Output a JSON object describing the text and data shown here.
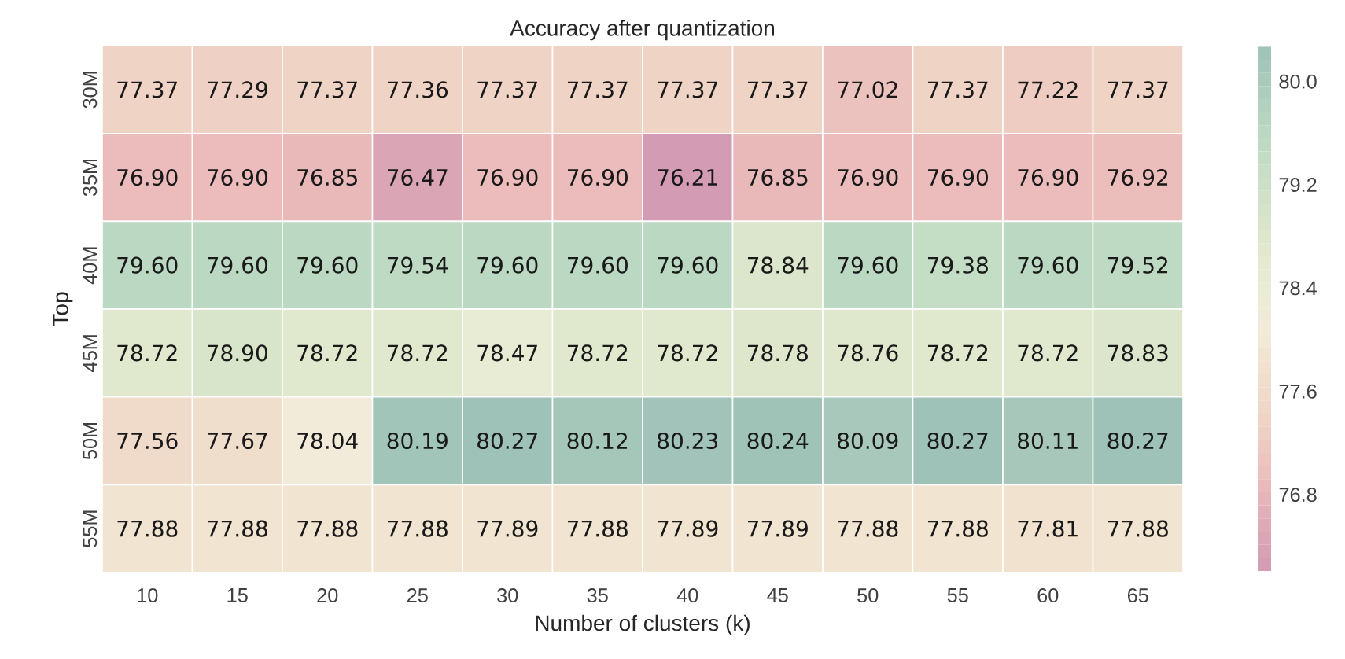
{
  "chart_data": {
    "type": "heatmap",
    "title": "Accuracy after quantization",
    "xlabel": "Number of clusters (k)",
    "ylabel": "Top",
    "categories": [
      "10",
      "15",
      "20",
      "25",
      "30",
      "35",
      "40",
      "45",
      "50",
      "55",
      "60",
      "65"
    ],
    "y_categories": [
      "30M",
      "35M",
      "40M",
      "45M",
      "50M",
      "55M"
    ],
    "cells": [
      [
        77.37,
        77.29,
        77.37,
        77.36,
        77.37,
        77.37,
        77.37,
        77.37,
        77.02,
        77.37,
        77.22,
        77.37
      ],
      [
        76.9,
        76.9,
        76.85,
        76.47,
        76.9,
        76.9,
        76.21,
        76.85,
        76.9,
        76.9,
        76.9,
        76.92
      ],
      [
        79.6,
        79.6,
        79.6,
        79.54,
        79.6,
        79.6,
        79.6,
        78.84,
        79.6,
        79.38,
        79.6,
        79.52
      ],
      [
        78.72,
        78.9,
        78.72,
        78.72,
        78.47,
        78.72,
        78.72,
        78.78,
        78.76,
        78.72,
        78.72,
        78.83
      ],
      [
        77.56,
        77.67,
        78.04,
        80.19,
        80.27,
        80.12,
        80.23,
        80.24,
        80.09,
        80.27,
        80.11,
        80.27
      ],
      [
        77.88,
        77.88,
        77.88,
        77.88,
        77.89,
        77.88,
        77.89,
        77.89,
        77.88,
        77.88,
        77.81,
        77.88
      ]
    ],
    "cell_labels": [
      [
        "77.37",
        "77.29",
        "77.37",
        "77.36",
        "77.37",
        "77.37",
        "77.37",
        "77.37",
        "77.02",
        "77.37",
        "77.22",
        "77.37"
      ],
      [
        "76.90",
        "76.90",
        "76.85",
        "76.47",
        "76.90",
        "76.90",
        "76.21",
        "76.85",
        "76.90",
        "76.90",
        "76.90",
        "76.92"
      ],
      [
        "79.60",
        "79.60",
        "79.60",
        "79.54",
        "79.60",
        "79.60",
        "79.60",
        "78.84",
        "79.60",
        "79.38",
        "79.60",
        "79.52"
      ],
      [
        "78.72",
        "78.90",
        "78.72",
        "78.72",
        "78.47",
        "78.72",
        "78.72",
        "78.78",
        "78.76",
        "78.72",
        "78.72",
        "78.83"
      ],
      [
        "77.56",
        "77.67",
        "78.04",
        "80.19",
        "80.27",
        "80.12",
        "80.23",
        "80.24",
        "80.09",
        "80.27",
        "80.11",
        "80.27"
      ],
      [
        "77.88",
        "77.88",
        "77.88",
        "77.88",
        "77.89",
        "77.88",
        "77.89",
        "77.89",
        "77.88",
        "77.88",
        "77.81",
        "77.88"
      ]
    ],
    "clim": [
      76.21,
      80.27
    ],
    "cticks": [
      76.8,
      77.6,
      78.4,
      79.2,
      {
        "value": 80.0,
        "label": "80.0"
      }
    ]
  }
}
